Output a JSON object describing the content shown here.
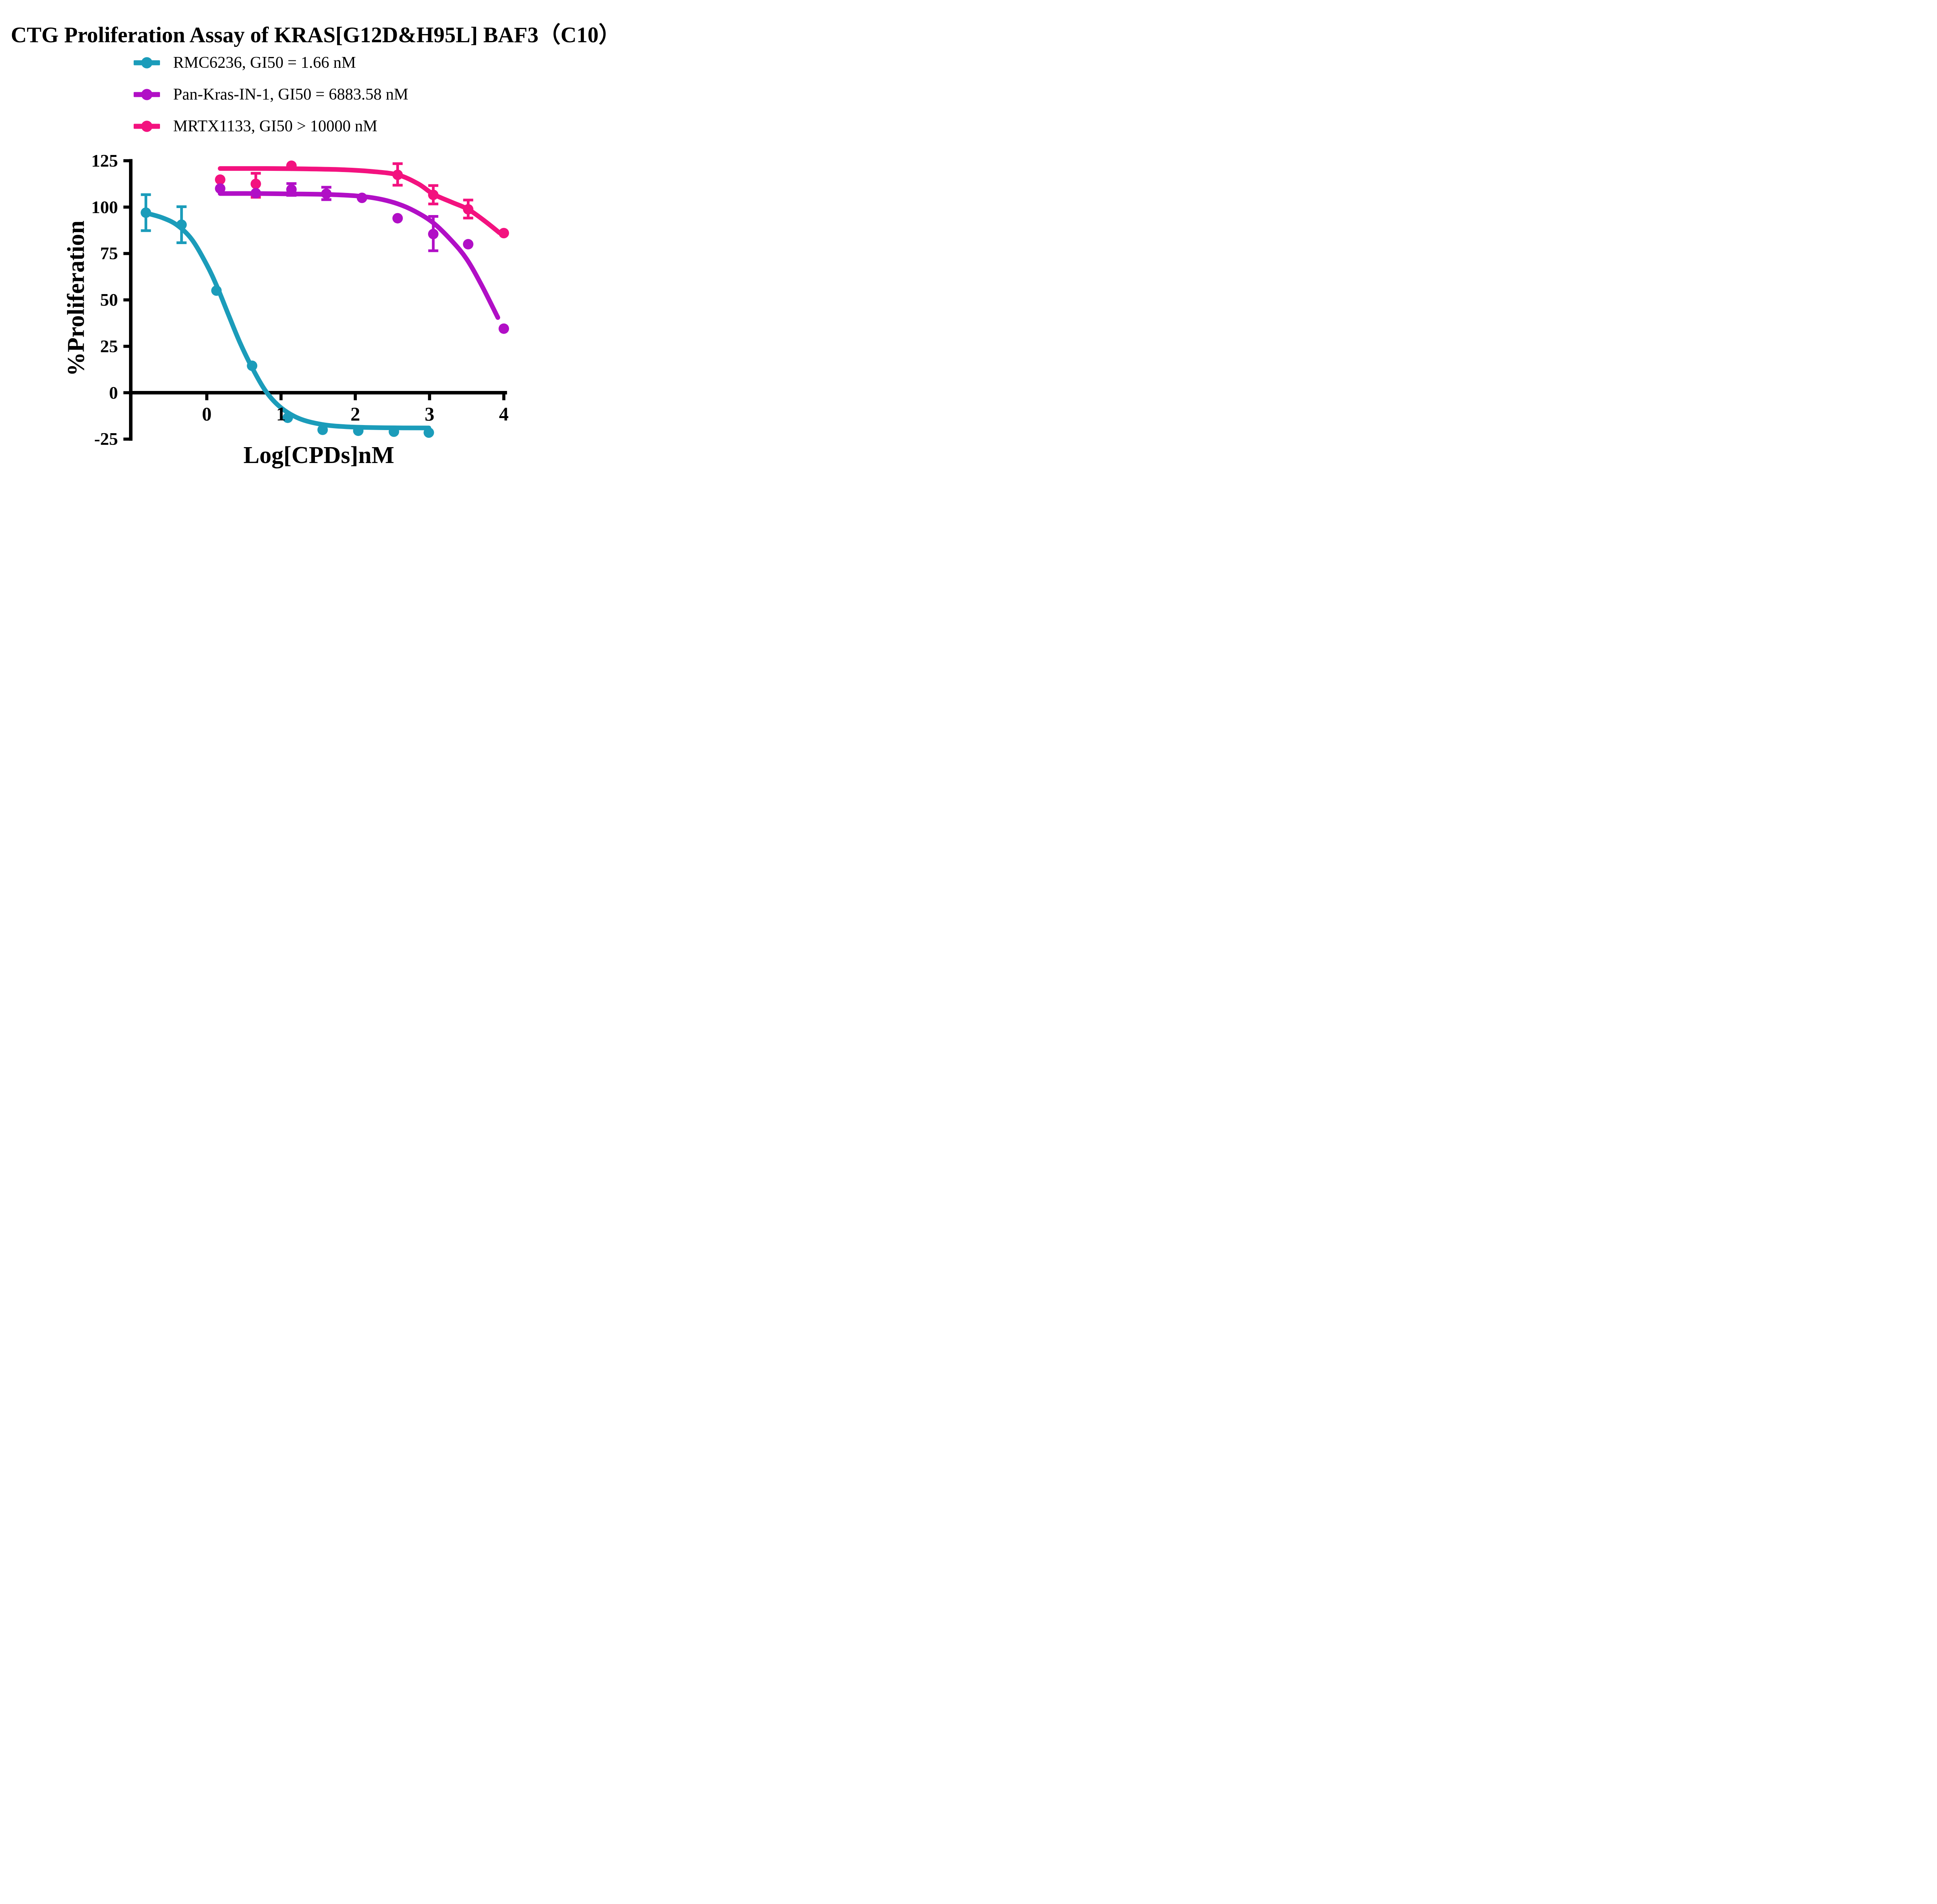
{
  "chart_data": {
    "type": "line",
    "title": "CTG Proliferation Assay of KRAS[G12D&H95L] BAF3（C10）",
    "xlabel": "Log[CPDs]nM",
    "ylabel": "%Proliferation",
    "xlim": [
      -1.02,
      4.07
    ],
    "ylim": [
      -25,
      125
    ],
    "x_ticks": [
      0,
      1,
      2,
      3,
      4
    ],
    "y_ticks": [
      125,
      100,
      75,
      50,
      25,
      0,
      -25
    ],
    "grid": false,
    "legend_position": "top-left-above-plot",
    "axis_color": "#000000",
    "series": [
      {
        "name": "RMC6236",
        "legend": "RMC6236, GI50 = 1.66 nM",
        "gi50": "= 1.66 nM",
        "color": "#1B9CBA",
        "x": [
          -0.82,
          -0.34,
          0.13,
          0.61,
          1.09,
          1.56,
          2.04,
          2.52,
          2.99
        ],
        "y": [
          97,
          90.5,
          55,
          14.5,
          -13.5,
          -20,
          -20.5,
          -21,
          -21.5
        ],
        "err_up": [
          9.7,
          9.7,
          0,
          0,
          0,
          0,
          0,
          0,
          0
        ],
        "err_down": [
          9.7,
          9.7,
          0,
          0,
          0,
          0,
          0,
          0,
          0
        ],
        "curve": [
          [
            -0.82,
            96.8
          ],
          [
            -0.6,
            94.3
          ],
          [
            -0.4,
            90.3
          ],
          [
            -0.2,
            82.5
          ],
          [
            0,
            68.9
          ],
          [
            0.14,
            57
          ],
          [
            0.3,
            41.2
          ],
          [
            0.45,
            26.7
          ],
          [
            0.61,
            13.5
          ],
          [
            0.8,
            0.5
          ],
          [
            1.0,
            -8.1
          ],
          [
            1.25,
            -14
          ],
          [
            1.55,
            -17.1
          ],
          [
            1.9,
            -18.4
          ],
          [
            2.4,
            -18.9
          ],
          [
            2.99,
            -19
          ]
        ]
      },
      {
        "name": "Pan-Kras-IN-1",
        "legend": "Pan-Kras-IN-1, GI50 = 6883.58 nM",
        "gi50": "= 6883.58 nM",
        "color": "#B10FC6",
        "x": [
          0.18,
          0.66,
          1.14,
          1.61,
          2.09,
          2.57,
          3.05,
          3.52,
          4.0
        ],
        "y": [
          110,
          107.5,
          109.5,
          107.2,
          105,
          94,
          85.5,
          80,
          34.5
        ],
        "err_up": [
          0,
          0,
          3.2,
          3.5,
          0,
          0,
          9.5,
          0,
          0
        ],
        "err_down": [
          0,
          0,
          3.2,
          3.2,
          0,
          0,
          9,
          0,
          0
        ],
        "curve": [
          [
            0.18,
            107.3
          ],
          [
            0.7,
            107.3
          ],
          [
            1.14,
            107.1
          ],
          [
            1.61,
            106.8
          ],
          [
            2.0,
            106.1
          ],
          [
            2.3,
            104.6
          ],
          [
            2.57,
            101.8
          ],
          [
            2.8,
            97.8
          ],
          [
            3.05,
            91.5
          ],
          [
            3.3,
            81.8
          ],
          [
            3.5,
            72
          ],
          [
            3.7,
            58
          ],
          [
            3.92,
            40.5
          ]
        ]
      },
      {
        "name": "MRTX1133",
        "legend": "MRTX1133, GI50 > 10000 nM",
        "gi50": "> 10000 nM",
        "color": "#F3127F",
        "x": [
          0.18,
          0.66,
          1.14,
          2.57,
          3.05,
          3.52,
          4.0
        ],
        "y": [
          114.8,
          112.5,
          122.3,
          117.4,
          106.6,
          98.8,
          86
        ],
        "err_up": [
          0,
          5.7,
          0,
          6,
          5,
          5,
          0
        ],
        "err_down": [
          0,
          7.2,
          0,
          5.6,
          4.9,
          4.7,
          0
        ],
        "curve": [
          [
            0.18,
            120.8
          ],
          [
            0.8,
            120.8
          ],
          [
            1.3,
            120.6
          ],
          [
            1.8,
            120.2
          ],
          [
            2.2,
            119.3
          ],
          [
            2.57,
            117.4
          ],
          [
            2.85,
            112.5
          ],
          [
            3.05,
            107
          ],
          [
            3.3,
            102.6
          ],
          [
            3.52,
            98.8
          ],
          [
            3.75,
            92.3
          ],
          [
            3.94,
            86.2
          ]
        ]
      }
    ]
  }
}
